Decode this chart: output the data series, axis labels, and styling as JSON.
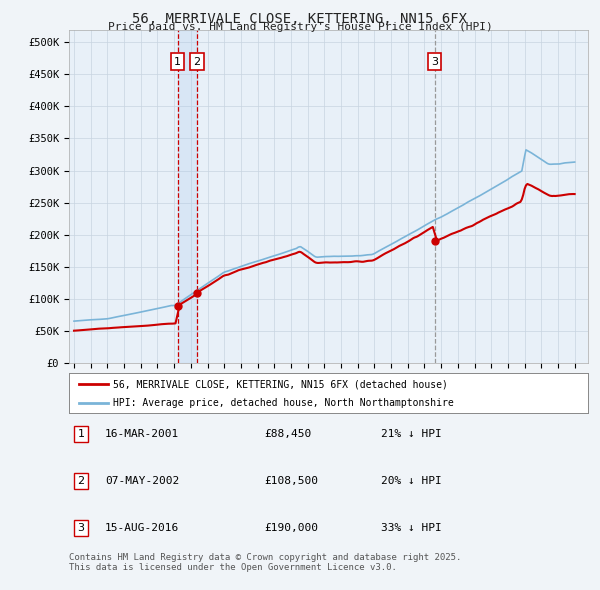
{
  "title": "56, MERRIVALE CLOSE, KETTERING, NN15 6FX",
  "subtitle": "Price paid vs. HM Land Registry's House Price Index (HPI)",
  "ylim": [
    0,
    520000
  ],
  "yticks": [
    0,
    50000,
    100000,
    150000,
    200000,
    250000,
    300000,
    350000,
    400000,
    450000,
    500000
  ],
  "ytick_labels": [
    "£0",
    "£50K",
    "£100K",
    "£150K",
    "£200K",
    "£250K",
    "£300K",
    "£350K",
    "£400K",
    "£450K",
    "£500K"
  ],
  "xlim_start": 1994.7,
  "xlim_end": 2025.8,
  "hpi_color": "#7ab4d8",
  "price_color": "#cc0000",
  "vline_color_red": "#cc0000",
  "vline_color_gray": "#999999",
  "legend_label_price": "56, MERRIVALE CLOSE, KETTERING, NN15 6FX (detached house)",
  "legend_label_hpi": "HPI: Average price, detached house, North Northamptonshire",
  "sale1_year": 2001.21,
  "sale2_year": 2002.37,
  "sale3_year": 2016.62,
  "sale1_price": 88450,
  "sale2_price": 108500,
  "sale3_price": 190000,
  "sales": [
    {
      "label": "1",
      "date": "16-MAR-2001",
      "price_str": "£88,450",
      "below": "21% ↓ HPI"
    },
    {
      "label": "2",
      "date": "07-MAY-2002",
      "price_str": "£108,500",
      "below": "20% ↓ HPI"
    },
    {
      "label": "3",
      "date": "15-AUG-2016",
      "price_str": "£190,000",
      "below": "33% ↓ HPI"
    }
  ],
  "footer_line1": "Contains HM Land Registry data © Crown copyright and database right 2025.",
  "footer_line2": "This data is licensed under the Open Government Licence v3.0.",
  "bg_color": "#f0f4f8",
  "plot_bg_color": "#e8f0f8",
  "grid_color": "#c8d4e0"
}
